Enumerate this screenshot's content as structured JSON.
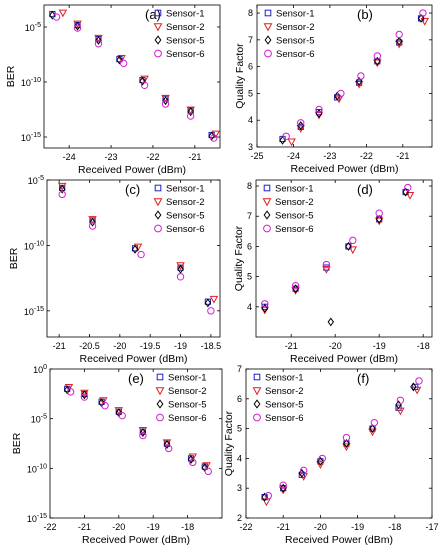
{
  "chart_data": [
    {
      "type": "scatter",
      "panel_label": "(a)",
      "xlabel": "Received Power (dBm)",
      "ylabel": "BER",
      "yscale": "log",
      "xlim": [
        -24.6,
        -20.4
      ],
      "ylim": [
        1e-16,
        0.001
      ],
      "xticks": [
        -24,
        -23,
        -22,
        -21
      ],
      "xtick_labels": [
        "-24",
        "-23",
        "-22",
        "-21"
      ],
      "yticks": [
        1e-05,
        1e-10,
        1e-15
      ],
      "ytick_labels": [
        "10^-5",
        "10^-10",
        "10^-15"
      ],
      "legend": "top-right",
      "series": [
        {
          "name": "Sensor-1",
          "marker": "square",
          "color": "#1f1fd0",
          "points": [
            [
              -24.4,
              0.00015
            ],
            [
              -23.8,
              1.5e-05
            ],
            [
              -23.3,
              8e-07
            ],
            [
              -22.8,
              1.2e-08
            ],
            [
              -22.25,
              1.5e-10
            ],
            [
              -21.7,
              3e-12
            ],
            [
              -21.1,
              2.5e-13
            ],
            [
              -20.6,
              1.5e-15
            ]
          ]
        },
        {
          "name": "Sensor-2",
          "marker": "triangle-down",
          "color": "#e02020",
          "points": [
            [
              -24.15,
              0.0002
            ],
            [
              -23.8,
              2e-05
            ],
            [
              -23.3,
              1e-06
            ],
            [
              -22.75,
              1.5e-08
            ],
            [
              -22.2,
              2e-10
            ],
            [
              -21.7,
              3.5e-12
            ],
            [
              -21.1,
              3e-13
            ],
            [
              -20.5,
              2e-15
            ]
          ]
        },
        {
          "name": "Sensor-5",
          "marker": "diamond",
          "color": "#000000",
          "points": [
            [
              -24.4,
              0.00012
            ],
            [
              -23.8,
              1.2e-05
            ],
            [
              -23.3,
              6e-07
            ],
            [
              -22.8,
              1e-08
            ],
            [
              -22.25,
              1.2e-10
            ],
            [
              -21.7,
              2e-12
            ],
            [
              -21.1,
              2e-13
            ],
            [
              -20.6,
              1.2e-15
            ]
          ]
        },
        {
          "name": "Sensor-6",
          "marker": "circle",
          "color": "#d020d0",
          "points": [
            [
              -24.3,
              8e-05
            ],
            [
              -23.8,
              8e-06
            ],
            [
              -23.3,
              3e-07
            ],
            [
              -22.7,
              5e-09
            ],
            [
              -22.2,
              5e-11
            ],
            [
              -21.7,
              1e-12
            ],
            [
              -21.1,
              8e-14
            ],
            [
              -20.55,
              8e-16
            ]
          ]
        }
      ]
    },
    {
      "type": "scatter",
      "panel_label": "(b)",
      "xlabel": "Received Power (dBm)",
      "ylabel": "Quality Factor",
      "yscale": "linear",
      "xlim": [
        -25,
        -20.2
      ],
      "ylim": [
        3,
        8.3
      ],
      "xticks": [
        -25,
        -24,
        -23,
        -22,
        -21
      ],
      "xtick_labels": [
        "-25",
        "-24",
        "-23",
        "-22",
        "-21"
      ],
      "yticks": [
        3,
        4,
        5,
        6,
        7,
        8
      ],
      "ytick_labels": [
        "3",
        "4",
        "5",
        "6",
        "7",
        "8"
      ],
      "legend": "top-left",
      "series": [
        {
          "name": "Sensor-1",
          "marker": "square",
          "color": "#1f1fd0",
          "points": [
            [
              -24.3,
              3.3
            ],
            [
              -23.8,
              3.75
            ],
            [
              -23.3,
              4.3
            ],
            [
              -22.8,
              4.85
            ],
            [
              -22.2,
              5.4
            ],
            [
              -21.7,
              6.2
            ],
            [
              -21.1,
              6.9
            ],
            [
              -20.5,
              7.8
            ]
          ]
        },
        {
          "name": "Sensor-2",
          "marker": "triangle-down",
          "color": "#e02020",
          "points": [
            [
              -24.05,
              3.2
            ],
            [
              -23.8,
              3.7
            ],
            [
              -23.3,
              4.2
            ],
            [
              -22.75,
              4.8
            ],
            [
              -22.2,
              5.35
            ],
            [
              -21.7,
              6.15
            ],
            [
              -21.1,
              6.85
            ],
            [
              -20.4,
              7.7
            ]
          ]
        },
        {
          "name": "Sensor-5",
          "marker": "diamond",
          "color": "#000000",
          "points": [
            [
              -24.3,
              3.25
            ],
            [
              -23.8,
              3.8
            ],
            [
              -23.3,
              4.25
            ],
            [
              -22.8,
              4.9
            ],
            [
              -22.2,
              5.45
            ],
            [
              -21.7,
              6.2
            ],
            [
              -21.1,
              6.95
            ],
            [
              -20.5,
              7.8
            ]
          ]
        },
        {
          "name": "Sensor-6",
          "marker": "circle",
          "color": "#d020d0",
          "points": [
            [
              -24.2,
              3.4
            ],
            [
              -23.8,
              3.9
            ],
            [
              -23.3,
              4.4
            ],
            [
              -22.7,
              5.0
            ],
            [
              -22.15,
              5.65
            ],
            [
              -21.7,
              6.4
            ],
            [
              -21.1,
              7.2
            ],
            [
              -20.45,
              8.0
            ]
          ]
        }
      ]
    },
    {
      "type": "scatter",
      "panel_label": "(c)",
      "xlabel": "Received Power (dBm)",
      "ylabel": "BER",
      "yscale": "log",
      "xlim": [
        -21.2,
        -18.35
      ],
      "ylim": [
        1e-17,
        1e-05
      ],
      "xticks": [
        -21,
        -20.5,
        -20,
        -19.5,
        -19,
        -18.5
      ],
      "xtick_labels": [
        "-21",
        "-20.5",
        "-20",
        "-19.5",
        "-19",
        "-18.5"
      ],
      "yticks": [
        1e-05,
        1e-10,
        1e-15
      ],
      "ytick_labels": [
        "10^-5",
        "10^-10",
        "10^-15"
      ],
      "legend": "top-right",
      "series": [
        {
          "name": "Sensor-1",
          "marker": "square",
          "color": "#1f1fd0",
          "points": [
            [
              -20.95,
              2.5e-06
            ],
            [
              -20.45,
              8e-09
            ],
            [
              -19.75,
              6e-11
            ],
            [
              -19.0,
              2e-12
            ],
            [
              -18.55,
              5e-15
            ]
          ]
        },
        {
          "name": "Sensor-2",
          "marker": "triangle-down",
          "color": "#e02020",
          "points": [
            [
              -20.95,
              3.5e-06
            ],
            [
              -20.45,
              1e-08
            ],
            [
              -19.7,
              8e-11
            ],
            [
              -19.0,
              3e-12
            ],
            [
              -18.45,
              8e-15
            ]
          ]
        },
        {
          "name": "Sensor-5",
          "marker": "diamond",
          "color": "#000000",
          "points": [
            [
              -20.95,
              2e-06
            ],
            [
              -20.45,
              6e-09
            ],
            [
              -19.75,
              5e-11
            ],
            [
              -19.0,
              1.5e-12
            ],
            [
              -18.55,
              4e-15
            ]
          ]
        },
        {
          "name": "Sensor-6",
          "marker": "circle",
          "color": "#d020d0",
          "points": [
            [
              -20.95,
              8e-07
            ],
            [
              -20.45,
              3e-09
            ],
            [
              -19.65,
              2e-11
            ],
            [
              -19.0,
              4e-13
            ],
            [
              -18.5,
              1e-15
            ]
          ]
        }
      ]
    },
    {
      "type": "scatter",
      "panel_label": "(d)",
      "xlabel": "Received Power (dBm)",
      "ylabel": "Quality Factor",
      "yscale": "linear",
      "xlim": [
        -21.8,
        -17.8
      ],
      "ylim": [
        3,
        8.2
      ],
      "xticks": [
        -21,
        -20,
        -19,
        -18
      ],
      "xtick_labels": [
        "-21",
        "-20",
        "-19",
        "-18"
      ],
      "yticks": [
        4,
        5,
        6,
        7,
        8
      ],
      "ytick_labels": [
        "4",
        "5",
        "6",
        "7",
        "8"
      ],
      "legend": "top-left",
      "series": [
        {
          "name": "Sensor-1",
          "marker": "square",
          "color": "#1f1fd0",
          "points": [
            [
              -21.6,
              4.0
            ],
            [
              -20.9,
              4.6
            ],
            [
              -20.2,
              5.3
            ],
            [
              -19.7,
              6.0
            ],
            [
              -19.0,
              6.9
            ],
            [
              -18.4,
              7.8
            ]
          ]
        },
        {
          "name": "Sensor-2",
          "marker": "triangle-down",
          "color": "#e02020",
          "points": [
            [
              -21.6,
              3.9
            ],
            [
              -20.9,
              4.55
            ],
            [
              -20.2,
              5.25
            ],
            [
              -19.6,
              5.9
            ],
            [
              -19.0,
              6.85
            ],
            [
              -18.3,
              7.7
            ]
          ]
        },
        {
          "name": "Sensor-5",
          "marker": "diamond",
          "color": "#000000",
          "points": [
            [
              -21.6,
              3.95
            ],
            [
              -20.9,
              4.6
            ],
            [
              -20.1,
              3.5
            ],
            [
              -19.7,
              6.0
            ],
            [
              -19.0,
              6.9
            ],
            [
              -18.4,
              7.8
            ]
          ]
        },
        {
          "name": "Sensor-6",
          "marker": "circle",
          "color": "#d020d0",
          "points": [
            [
              -21.6,
              4.1
            ],
            [
              -20.9,
              4.7
            ],
            [
              -20.2,
              5.4
            ],
            [
              -19.6,
              6.2
            ],
            [
              -19.0,
              7.1
            ],
            [
              -18.35,
              7.95
            ]
          ]
        }
      ]
    },
    {
      "type": "scatter",
      "panel_label": "(e)",
      "xlabel": "Received Power (dBm)",
      "ylabel": "BER",
      "yscale": "log",
      "xlim": [
        -22,
        -17
      ],
      "ylim": [
        1e-15,
        1
      ],
      "xticks": [
        -22,
        -21,
        -20,
        -19,
        -18
      ],
      "xtick_labels": [
        "-22",
        "-21",
        "-20",
        "-19",
        "-18"
      ],
      "yticks": [
        1,
        1e-05,
        1e-10,
        1e-15
      ],
      "ytick_labels": [
        "10^0",
        "10^-5",
        "10^-10",
        "10^-15"
      ],
      "legend": "top-right",
      "series": [
        {
          "name": "Sensor-1",
          "marker": "square",
          "color": "#1f1fd0",
          "points": [
            [
              -21.5,
              0.01
            ],
            [
              -21.0,
              0.003
            ],
            [
              -20.5,
              0.0005
            ],
            [
              -20.0,
              5e-05
            ],
            [
              -19.3,
              5e-07
            ],
            [
              -18.6,
              3e-08
            ],
            [
              -17.9,
              1e-09
            ],
            [
              -17.5,
              1.5e-10
            ]
          ]
        },
        {
          "name": "Sensor-2",
          "marker": "triangle-down",
          "color": "#e02020",
          "points": [
            [
              -21.45,
              0.015
            ],
            [
              -21.0,
              0.004
            ],
            [
              -20.45,
              0.0007
            ],
            [
              -20.0,
              7e-05
            ],
            [
              -19.3,
              7e-07
            ],
            [
              -18.6,
              4e-08
            ],
            [
              -17.85,
              1.5e-09
            ],
            [
              -17.45,
              2e-10
            ]
          ]
        },
        {
          "name": "Sensor-5",
          "marker": "diamond",
          "color": "#000000",
          "points": [
            [
              -21.5,
              0.008
            ],
            [
              -21.0,
              0.0025
            ],
            [
              -20.5,
              0.0004
            ],
            [
              -20.0,
              4e-05
            ],
            [
              -19.3,
              4e-07
            ],
            [
              -18.6,
              2.5e-08
            ],
            [
              -17.9,
              8e-10
            ],
            [
              -17.5,
              1.2e-10
            ]
          ]
        },
        {
          "name": "Sensor-6",
          "marker": "circle",
          "color": "#d020d0",
          "points": [
            [
              -21.4,
              0.005
            ],
            [
              -21.0,
              0.0015
            ],
            [
              -20.4,
              0.0002
            ],
            [
              -19.9,
              2e-05
            ],
            [
              -19.3,
              2e-07
            ],
            [
              -18.55,
              1e-08
            ],
            [
              -17.85,
              4e-10
            ],
            [
              -17.4,
              5e-11
            ]
          ]
        }
      ]
    },
    {
      "type": "scatter",
      "panel_label": "(f)",
      "xlabel": "Received Power (dBm)",
      "ylabel": "Quality Factor",
      "yscale": "linear",
      "xlim": [
        -22,
        -17
      ],
      "ylim": [
        2,
        7
      ],
      "xticks": [
        -22,
        -21,
        -20,
        -19,
        -18,
        -17
      ],
      "xtick_labels": [
        "-22",
        "-21",
        "-20",
        "-19",
        "-18",
        "-17"
      ],
      "yticks": [
        2,
        3,
        4,
        5,
        6,
        7
      ],
      "ytick_labels": [
        "2",
        "3",
        "4",
        "5",
        "6",
        "7"
      ],
      "legend": "top-left",
      "series": [
        {
          "name": "Sensor-1",
          "marker": "square",
          "color": "#1f1fd0",
          "points": [
            [
              -21.5,
              2.7
            ],
            [
              -21.0,
              3.0
            ],
            [
              -20.5,
              3.45
            ],
            [
              -20.0,
              3.9
            ],
            [
              -19.3,
              4.5
            ],
            [
              -18.6,
              5.0
            ],
            [
              -17.9,
              5.7
            ],
            [
              -17.45,
              6.4
            ]
          ]
        },
        {
          "name": "Sensor-2",
          "marker": "triangle-down",
          "color": "#e02020",
          "points": [
            [
              -21.45,
              2.55
            ],
            [
              -21.0,
              2.95
            ],
            [
              -20.45,
              3.4
            ],
            [
              -20.0,
              3.8
            ],
            [
              -19.3,
              4.4
            ],
            [
              -18.6,
              4.9
            ],
            [
              -17.85,
              5.6
            ],
            [
              -17.4,
              6.3
            ]
          ]
        },
        {
          "name": "Sensor-5",
          "marker": "diamond",
          "color": "#000000",
          "points": [
            [
              -21.5,
              2.7
            ],
            [
              -21.0,
              3.0
            ],
            [
              -20.5,
              3.5
            ],
            [
              -20.0,
              3.9
            ],
            [
              -19.3,
              4.5
            ],
            [
              -18.6,
              5.0
            ],
            [
              -17.9,
              5.8
            ],
            [
              -17.5,
              6.4
            ]
          ]
        },
        {
          "name": "Sensor-6",
          "marker": "circle",
          "color": "#d020d0",
          "points": [
            [
              -21.4,
              2.75
            ],
            [
              -21.0,
              3.1
            ],
            [
              -20.45,
              3.6
            ],
            [
              -19.95,
              4.0
            ],
            [
              -19.3,
              4.7
            ],
            [
              -18.55,
              5.2
            ],
            [
              -17.85,
              5.95
            ],
            [
              -17.35,
              6.6
            ]
          ]
        }
      ]
    }
  ]
}
